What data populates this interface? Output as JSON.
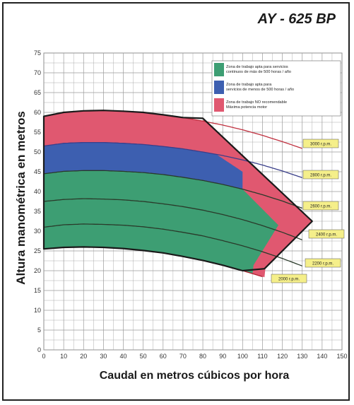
{
  "chart_data": {
    "type": "area",
    "title": "AY - 625 BP",
    "xlabel": "Caudal en metros cúbicos por hora",
    "ylabel": "Altura manométrica en metros",
    "xlim": [
      0,
      150
    ],
    "ylim": [
      0,
      75
    ],
    "x_ticks": [
      0,
      10,
      20,
      30,
      40,
      50,
      60,
      70,
      80,
      90,
      100,
      110,
      120,
      130,
      140,
      150
    ],
    "y_ticks": [
      0,
      5,
      10,
      15,
      20,
      25,
      30,
      35,
      40,
      45,
      50,
      55,
      60,
      65,
      70,
      75
    ],
    "grid": true,
    "legend_position": "top-right",
    "zones": [
      {
        "name": "Zona de trabajo apta para servicios continuos de más de 500 horas / año",
        "color": "#3d9e73"
      },
      {
        "name": "Zona de trabajo apta para servicios de menos de 500 horas / año",
        "color": "#3d5fb0"
      },
      {
        "name": "Zona de trabajo NO recomendable Máxima potencia motor",
        "color": "#e05870"
      }
    ],
    "series": [
      {
        "name": "3000 r.p.m.",
        "x": [
          0,
          10,
          20,
          30,
          40,
          50,
          60,
          70,
          80,
          90,
          100,
          110,
          120,
          130
        ],
        "y": [
          59,
          60,
          60.4,
          60.5,
          60.3,
          60,
          59.4,
          58.7,
          57.8,
          56.8,
          55.6,
          54.2,
          52.6,
          50.9
        ]
      },
      {
        "name": "2800 r.p.m.",
        "x": [
          0,
          10,
          20,
          30,
          40,
          50,
          60,
          70,
          80,
          90,
          100,
          110,
          120,
          130
        ],
        "y": [
          51.5,
          52.2,
          52.4,
          52.4,
          52.2,
          51.9,
          51.4,
          50.8,
          50,
          49.1,
          48,
          46.7,
          45.2,
          43.5
        ]
      },
      {
        "name": "2600 r.p.m.",
        "x": [
          0,
          10,
          20,
          30,
          40,
          50,
          60,
          70,
          80,
          90,
          100,
          110,
          120,
          130
        ],
        "y": [
          44.5,
          45.1,
          45.3,
          45.3,
          45.1,
          44.8,
          44.3,
          43.6,
          42.8,
          41.8,
          40.6,
          39.2,
          37.6,
          35.8
        ]
      },
      {
        "name": "2400 r.p.m.",
        "x": [
          0,
          10,
          20,
          30,
          40,
          50,
          60,
          70,
          80,
          90,
          100,
          110,
          120,
          130
        ],
        "y": [
          37.5,
          38,
          38.2,
          38.1,
          37.9,
          37.5,
          36.9,
          36.2,
          35.3,
          34.2,
          32.9,
          31.4,
          29.7,
          27.8
        ]
      },
      {
        "name": "2200 r.p.m.",
        "x": [
          0,
          10,
          20,
          30,
          40,
          50,
          60,
          70,
          80,
          90,
          100,
          110,
          120,
          130
        ],
        "y": [
          31,
          31.6,
          31.8,
          31.7,
          31.5,
          31.1,
          30.5,
          29.7,
          28.8,
          27.6,
          26.3,
          24.8,
          23.1,
          21.2
        ]
      },
      {
        "name": "2000 r.p.m.",
        "x": [
          0,
          10,
          20,
          30,
          40,
          50,
          60,
          70,
          80,
          90,
          100,
          110
        ],
        "y": [
          25.5,
          25.9,
          26,
          25.9,
          25.6,
          25.1,
          24.5,
          23.6,
          22.6,
          21.4,
          20,
          18.5
        ]
      }
    ],
    "operating_envelope": {
      "x": [
        0,
        10,
        20,
        30,
        40,
        50,
        60,
        70,
        80,
        135,
        111,
        100,
        90,
        80,
        70,
        60,
        50,
        40,
        30,
        20,
        10,
        0
      ],
      "y": [
        59,
        60,
        60.4,
        60.5,
        60.3,
        60,
        59.4,
        58.7,
        58.5,
        32.5,
        20.5,
        20,
        21.4,
        22.6,
        23.6,
        24.5,
        25.1,
        25.6,
        25.9,
        26,
        25.9,
        25.5
      ]
    }
  }
}
